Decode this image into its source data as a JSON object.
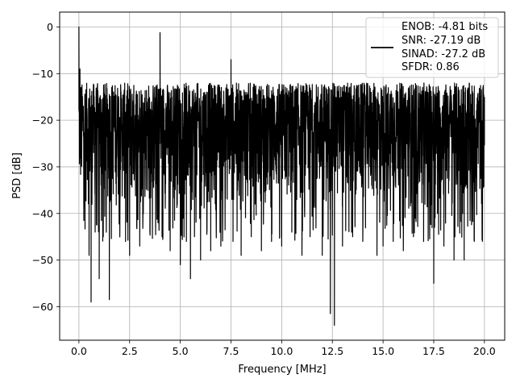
{
  "chart_data": {
    "type": "line",
    "title": "",
    "xlabel": "Frequency [MHz]",
    "ylabel": "PSD [dB]",
    "xlim": [
      -0.95,
      21.0
    ],
    "ylim": [
      -67.2,
      3.2
    ],
    "grid": true,
    "xticks": [
      0.0,
      2.5,
      5.0,
      7.5,
      10.0,
      12.5,
      15.0,
      17.5,
      20.0
    ],
    "xtick_labels": [
      "0.0",
      "2.5",
      "5.0",
      "7.5",
      "10.0",
      "12.5",
      "15.0",
      "17.5",
      "20.0"
    ],
    "yticks": [
      0,
      -10,
      -20,
      -30,
      -40,
      -50,
      -60
    ],
    "ytick_labels": [
      "0",
      "−10",
      "−20",
      "−30",
      "−40",
      "−50",
      "−60"
    ],
    "legend": {
      "placement": "top-right",
      "entries": [
        {
          "series": "PSD",
          "text_lines": [
            "ENOB: -4.81 bits",
            "SNR: -27.19 dB",
            "SINAD: -27.2 dB",
            "SFDR: 0.86"
          ]
        }
      ]
    },
    "series": [
      {
        "name": "ENOB: -4.81 bits\nSNR: -27.19 dB\nSINAD: -27.2 dB\nSFDR: 0.86",
        "color": "#000000",
        "x_range": [
          0.0,
          20.0
        ],
        "noise_floor_band_db": [
          -40.0,
          -12.0
        ],
        "x": [
          0.0,
          0.02,
          0.05,
          0.1,
          0.3,
          0.5,
          0.6,
          0.8,
          1.0,
          1.2,
          1.5,
          2.0,
          2.3,
          2.5,
          3.0,
          3.5,
          3.9,
          4.0,
          4.1,
          4.5,
          5.0,
          5.3,
          5.5,
          5.7,
          6.0,
          6.5,
          7.0,
          7.5,
          7.6,
          8.0,
          8.5,
          9.0,
          9.5,
          10.0,
          10.5,
          11.0,
          11.4,
          12.0,
          12.4,
          12.6,
          13.0,
          13.5,
          14.0,
          14.7,
          15.0,
          15.5,
          16.0,
          16.5,
          17.0,
          17.5,
          18.0,
          18.5,
          19.0,
          19.5,
          20.0
        ],
        "y": [
          0.0,
          -15.0,
          -9.0,
          -13.0,
          -18.0,
          -49.0,
          -59.0,
          -44.0,
          -54.0,
          -45.0,
          -58.5,
          -42.0,
          -46.0,
          -49.0,
          -47.0,
          -44.0,
          -42.0,
          -1.2,
          -45.0,
          -48.0,
          -51.0,
          -46.0,
          -54.0,
          -45.0,
          -50.0,
          -48.0,
          -47.0,
          -7.0,
          -46.0,
          -49.0,
          -45.0,
          -48.0,
          -46.0,
          -47.0,
          -44.0,
          -49.0,
          -45.0,
          -49.0,
          -61.5,
          -64.0,
          -47.0,
          -45.0,
          -46.0,
          -49.0,
          -47.0,
          -46.0,
          -48.0,
          -45.0,
          -46.0,
          -55.0,
          -47.0,
          -50.0,
          -50.0,
          -46.0,
          -15.0
        ]
      }
    ]
  }
}
